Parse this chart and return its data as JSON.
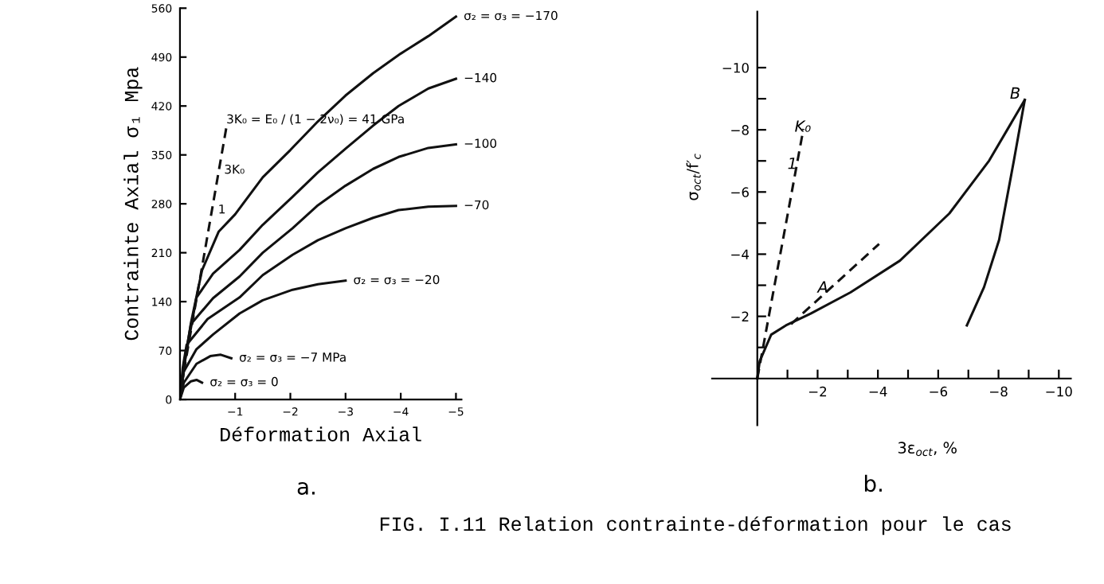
{
  "chart_data": [
    {
      "type": "line",
      "xlabel": "Déformation Axial",
      "ylabel": "Contrainte Axial σ₁ Mpa",
      "xlim": [
        0,
        -5.1
      ],
      "ylim": [
        0,
        560
      ],
      "xticks": [
        -1,
        -2,
        -3,
        -4,
        -5
      ],
      "yticks": [
        0,
        70,
        140,
        210,
        280,
        350,
        420,
        490,
        560
      ],
      "grid": false,
      "legend": false,
      "series": [
        {
          "name": "σ₂ = σ₃ = −170",
          "color": "#111111",
          "line_style": "solid",
          "x": [
            0,
            -0.1,
            -0.2,
            -0.4,
            -0.7,
            -1,
            -1.5,
            -2,
            -2.5,
            -3,
            -3.5,
            -4,
            -4.5,
            -5
          ],
          "values": [
            0,
            60,
            110,
            185,
            240,
            265,
            318,
            357,
            398,
            435,
            467,
            495,
            520,
            548
          ]
        },
        {
          "name": "−140",
          "color": "#111111",
          "line_style": "solid",
          "x": [
            0,
            -0.1,
            -0.3,
            -0.6,
            -1.08,
            -1.5,
            -2.04,
            -2.5,
            -3,
            -3.5,
            -3.96,
            -4.5,
            -5
          ],
          "values": [
            0,
            60,
            146,
            180,
            214,
            250,
            290,
            325,
            359,
            392,
            420,
            445,
            459
          ]
        },
        {
          "name": "−100",
          "color": "#111111",
          "line_style": "solid",
          "x": [
            0,
            -0.08,
            -0.2,
            -0.6,
            -1.08,
            -1.5,
            -2.04,
            -2.5,
            -3,
            -3.5,
            -3.96,
            -4.5,
            -5
          ],
          "values": [
            0,
            55,
            108,
            145,
            176,
            210,
            245,
            278,
            306,
            330,
            347,
            360,
            365
          ]
        },
        {
          "name": "−70",
          "color": "#111111",
          "line_style": "solid",
          "x": [
            0,
            -0.05,
            -0.12,
            -0.5,
            -1.08,
            -1.5,
            -2.04,
            -2.5,
            -3,
            -3.5,
            -3.96,
            -4.5,
            -5
          ],
          "values": [
            0,
            45,
            78,
            115,
            146,
            178,
            207,
            228,
            245,
            260,
            271,
            276,
            277
          ]
        },
        {
          "name": "σ₂ = σ₃ = −20",
          "color": "#111111",
          "line_style": "solid",
          "x": [
            0,
            -0.07,
            -0.3,
            -0.6,
            -1.08,
            -1.5,
            -2.04,
            -2.5,
            -3
          ],
          "values": [
            0,
            40,
            72,
            93,
            123,
            142,
            157,
            165,
            170
          ]
        },
        {
          "name": "σ₂ = σ₃ = −7 MPa",
          "color": "#111111",
          "line_style": "solid",
          "x": [
            0,
            -0.07,
            -0.3,
            -0.55,
            -0.74,
            -0.93
          ],
          "values": [
            0,
            24,
            51,
            62,
            64,
            59
          ]
        },
        {
          "name": "σ₂ = σ₃ = 0",
          "color": "#111111",
          "line_style": "solid",
          "x": [
            0,
            -0.07,
            -0.2,
            -0.3,
            -0.4
          ],
          "values": [
            0,
            17,
            26,
            28,
            24
          ]
        },
        {
          "color": "#111111",
          "line_style": "dashed",
          "x": [
            -0.07,
            -0.84
          ],
          "values": [
            40,
            389
          ]
        }
      ],
      "annotations": [
        {
          "text": "3K₀ = E₀ / (1 − 2ν₀) = 41 GPa",
          "x": -0.84,
          "y": 400
        },
        {
          "text": "3K₀",
          "x": -0.8,
          "y": 328
        },
        {
          "text": "1",
          "x": -0.69,
          "y": 271
        },
        "a.",
        "FIG. I.11 Relation contrainte-déformation pour le cas"
      ]
    },
    {
      "type": "line",
      "xlabel": "3ε$_{oct}$, %",
      "ylabel": "σ$_{oct}$/f′$_{c}$",
      "xlim": [
        1.5,
        -10.4
      ],
      "ylim": [
        1.5,
        -11.8
      ],
      "xticks": [
        {
          "value": -1,
          "label": null
        },
        -2,
        {
          "value": -3,
          "label": null
        },
        -4,
        {
          "value": -5,
          "label": null
        },
        -6,
        {
          "value": -7,
          "label": null
        },
        -8,
        {
          "value": -9,
          "label": null
        },
        -10
      ],
      "yticks": [
        {
          "value": -1,
          "label": null
        },
        -2,
        {
          "value": -3,
          "label": null
        },
        -4,
        {
          "value": -5,
          "label": null
        },
        -6,
        {
          "value": -7,
          "label": null
        },
        -8,
        {
          "value": -9,
          "label": null
        },
        -10
      ],
      "grid": false,
      "legend": false,
      "series": [
        {
          "color": "#111111",
          "line_style": "solid",
          "x": [
            0,
            -0.08,
            -0.46,
            -0.95,
            -1.77,
            -3.09,
            -4.73,
            -6.37,
            -7.69,
            -8.87
          ],
          "values": [
            0,
            -0.56,
            -1.41,
            -1.71,
            -2.09,
            -2.77,
            -3.79,
            -5.31,
            -7.01,
            -8.96
          ]
        },
        {
          "color": "#111111",
          "line_style": "solid",
          "x": [
            -8.87,
            -8.51,
            -8.02,
            -7.52,
            -6.95
          ],
          "values": [
            -8.96,
            -7.01,
            -4.46,
            -2.94,
            -1.71
          ]
        },
        {
          "color": "#111111",
          "line_style": "dashed",
          "x": [
            -1.12,
            -4.04
          ],
          "values": [
            -1.75,
            -4.33
          ]
        },
        {
          "color": "#111111",
          "line_style": "dashed",
          "x": [
            0,
            -1.53
          ],
          "values": [
            0,
            -8.03
          ]
        }
      ],
      "annotations": [
        {
          "text": "A",
          "x": -2.0,
          "y": -2.9
        },
        "B",
        "K₀",
        "1",
        "b."
      ]
    }
  ]
}
